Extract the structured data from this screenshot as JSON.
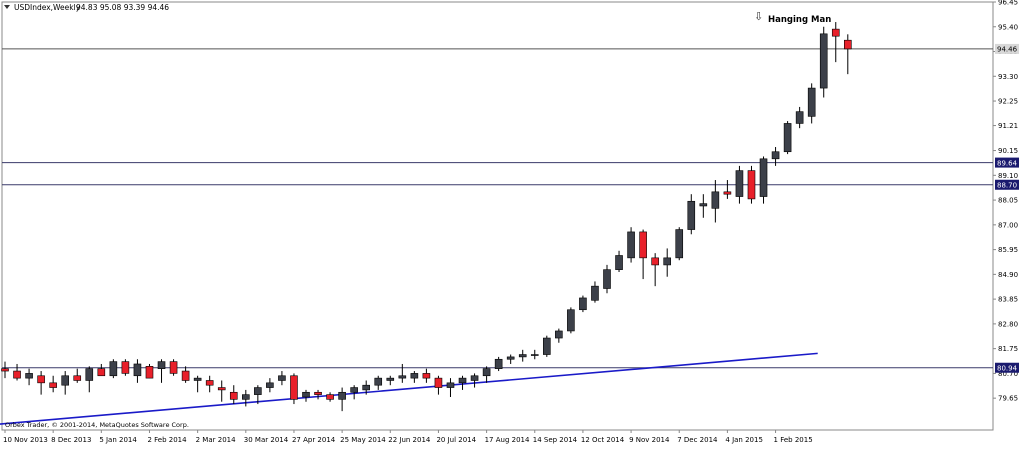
{
  "header": {
    "symbol": "USDIndex,Weekly",
    "ohlc": "94.83 95.08 93.39 94.46"
  },
  "footer": {
    "copyright": "Orbex Trader, © 2001-2014, MetaQuotes Software Corp."
  },
  "annotation": {
    "text": "Hanging Man",
    "arrow": "⇩"
  },
  "colors": {
    "bull": "#3c4049",
    "bear": "#e8202a",
    "wick": "#000000",
    "hline": "#3a3a6a",
    "trend": "#1a1ac8",
    "label_bg": "#1a1a6e",
    "axis": "#888888"
  },
  "chart_data": {
    "type": "candlestick",
    "ylim": [
      78.3,
      96.45
    ],
    "y_ticks": [
      "96.45",
      "95.40",
      "94.35",
      "93.30",
      "92.25",
      "91.21",
      "90.15",
      "89.10",
      "88.05",
      "87.00",
      "85.95",
      "84.90",
      "83.85",
      "82.80",
      "81.75",
      "80.70",
      "79.65"
    ],
    "x_ticks": [
      "10 Nov 2013",
      "8 Dec 2013",
      "5 Jan 2014",
      "2 Feb 2014",
      "2 Mar 2014",
      "30 Mar 2014",
      "27 Apr 2014",
      "25 May 2014",
      "22 Jun 2014",
      "20 Jul 2014",
      "17 Aug 2014",
      "14 Sep 2014",
      "12 Oct 2014",
      "9 Nov 2014",
      "7 Dec 2014",
      "4 Jan 2015",
      "1 Feb 2015"
    ],
    "horizontal_levels": [
      {
        "value": 94.46,
        "label": "94.46",
        "style": "gray"
      },
      {
        "value": 89.64,
        "label": "89.64",
        "style": "navy"
      },
      {
        "value": 88.7,
        "label": "88.70",
        "style": "navy"
      },
      {
        "value": 80.94,
        "label": "80.94",
        "style": "navy"
      }
    ],
    "trendline": {
      "start": [
        -0.5,
        78.55
      ],
      "end": [
        67.5,
        81.55
      ]
    },
    "candles": [
      {
        "o": 80.9,
        "h": 81.2,
        "l": 80.5,
        "c": 80.8
      },
      {
        "o": 80.8,
        "h": 81.1,
        "l": 80.4,
        "c": 80.5
      },
      {
        "o": 80.5,
        "h": 80.9,
        "l": 80.2,
        "c": 80.7
      },
      {
        "o": 80.6,
        "h": 80.8,
        "l": 79.8,
        "c": 80.3
      },
      {
        "o": 80.3,
        "h": 80.6,
        "l": 79.9,
        "c": 80.1
      },
      {
        "o": 80.2,
        "h": 80.8,
        "l": 79.8,
        "c": 80.6
      },
      {
        "o": 80.6,
        "h": 80.9,
        "l": 80.3,
        "c": 80.4
      },
      {
        "o": 80.4,
        "h": 81.0,
        "l": 79.9,
        "c": 80.9
      },
      {
        "o": 80.9,
        "h": 81.1,
        "l": 80.6,
        "c": 80.6
      },
      {
        "o": 80.6,
        "h": 81.3,
        "l": 80.5,
        "c": 81.2
      },
      {
        "o": 81.2,
        "h": 81.3,
        "l": 80.6,
        "c": 80.7
      },
      {
        "o": 80.6,
        "h": 81.3,
        "l": 80.3,
        "c": 81.1
      },
      {
        "o": 81.0,
        "h": 81.1,
        "l": 80.5,
        "c": 80.5
      },
      {
        "o": 80.9,
        "h": 81.3,
        "l": 80.3,
        "c": 81.2
      },
      {
        "o": 81.2,
        "h": 81.3,
        "l": 80.6,
        "c": 80.7
      },
      {
        "o": 80.8,
        "h": 81.0,
        "l": 80.3,
        "c": 80.4
      },
      {
        "o": 80.4,
        "h": 80.6,
        "l": 79.9,
        "c": 80.5
      },
      {
        "o": 80.4,
        "h": 80.6,
        "l": 79.9,
        "c": 80.2
      },
      {
        "o": 80.1,
        "h": 80.4,
        "l": 79.5,
        "c": 80.0
      },
      {
        "o": 79.9,
        "h": 80.2,
        "l": 79.4,
        "c": 79.6
      },
      {
        "o": 79.6,
        "h": 80.0,
        "l": 79.3,
        "c": 79.8
      },
      {
        "o": 79.8,
        "h": 80.2,
        "l": 79.4,
        "c": 80.1
      },
      {
        "o": 80.1,
        "h": 80.5,
        "l": 79.9,
        "c": 80.3
      },
      {
        "o": 80.4,
        "h": 80.8,
        "l": 80.2,
        "c": 80.6
      },
      {
        "o": 80.6,
        "h": 80.7,
        "l": 79.4,
        "c": 79.6
      },
      {
        "o": 79.7,
        "h": 80.0,
        "l": 79.5,
        "c": 79.9
      },
      {
        "o": 79.9,
        "h": 80.0,
        "l": 79.6,
        "c": 79.8
      },
      {
        "o": 79.8,
        "h": 79.9,
        "l": 79.5,
        "c": 79.6
      },
      {
        "o": 79.6,
        "h": 80.1,
        "l": 79.1,
        "c": 79.9
      },
      {
        "o": 79.9,
        "h": 80.2,
        "l": 79.6,
        "c": 80.1
      },
      {
        "o": 80.0,
        "h": 80.4,
        "l": 79.8,
        "c": 80.2
      },
      {
        "o": 80.2,
        "h": 80.6,
        "l": 80.0,
        "c": 80.5
      },
      {
        "o": 80.4,
        "h": 80.6,
        "l": 80.2,
        "c": 80.5
      },
      {
        "o": 80.5,
        "h": 81.1,
        "l": 80.3,
        "c": 80.6
      },
      {
        "o": 80.5,
        "h": 80.8,
        "l": 80.3,
        "c": 80.7
      },
      {
        "o": 80.7,
        "h": 80.9,
        "l": 80.3,
        "c": 80.5
      },
      {
        "o": 80.5,
        "h": 80.6,
        "l": 79.8,
        "c": 80.1
      },
      {
        "o": 80.1,
        "h": 80.5,
        "l": 79.7,
        "c": 80.3
      },
      {
        "o": 80.3,
        "h": 80.6,
        "l": 80.0,
        "c": 80.5
      },
      {
        "o": 80.4,
        "h": 80.7,
        "l": 80.1,
        "c": 80.6
      },
      {
        "o": 80.6,
        "h": 81.0,
        "l": 80.3,
        "c": 80.9
      },
      {
        "o": 80.9,
        "h": 81.4,
        "l": 80.8,
        "c": 81.3
      },
      {
        "o": 81.3,
        "h": 81.5,
        "l": 81.1,
        "c": 81.4
      },
      {
        "o": 81.4,
        "h": 81.7,
        "l": 81.2,
        "c": 81.5
      },
      {
        "o": 81.5,
        "h": 81.7,
        "l": 81.3,
        "c": 81.5
      },
      {
        "o": 81.5,
        "h": 82.3,
        "l": 81.4,
        "c": 82.2
      },
      {
        "o": 82.2,
        "h": 82.6,
        "l": 82.0,
        "c": 82.5
      },
      {
        "o": 82.5,
        "h": 83.5,
        "l": 82.4,
        "c": 83.4
      },
      {
        "o": 83.4,
        "h": 84.0,
        "l": 83.3,
        "c": 83.9
      },
      {
        "o": 83.8,
        "h": 84.6,
        "l": 83.7,
        "c": 84.4
      },
      {
        "o": 84.3,
        "h": 85.3,
        "l": 84.1,
        "c": 85.1
      },
      {
        "o": 85.1,
        "h": 85.9,
        "l": 85.0,
        "c": 85.7
      },
      {
        "o": 85.6,
        "h": 86.9,
        "l": 85.4,
        "c": 86.7
      },
      {
        "o": 86.7,
        "h": 86.8,
        "l": 84.7,
        "c": 85.6
      },
      {
        "o": 85.6,
        "h": 85.8,
        "l": 84.4,
        "c": 85.3
      },
      {
        "o": 85.3,
        "h": 86.0,
        "l": 84.8,
        "c": 85.6
      },
      {
        "o": 85.6,
        "h": 86.9,
        "l": 85.5,
        "c": 86.8
      },
      {
        "o": 86.8,
        "h": 88.3,
        "l": 86.6,
        "c": 88.0
      },
      {
        "o": 87.8,
        "h": 88.3,
        "l": 87.3,
        "c": 87.9
      },
      {
        "o": 87.7,
        "h": 88.9,
        "l": 87.1,
        "c": 88.4
      },
      {
        "o": 88.4,
        "h": 88.9,
        "l": 88.1,
        "c": 88.3
      },
      {
        "o": 88.2,
        "h": 89.5,
        "l": 87.9,
        "c": 89.3
      },
      {
        "o": 89.3,
        "h": 89.5,
        "l": 87.9,
        "c": 88.1
      },
      {
        "o": 88.2,
        "h": 89.9,
        "l": 87.9,
        "c": 89.8
      },
      {
        "o": 89.8,
        "h": 90.3,
        "l": 89.5,
        "c": 90.1
      },
      {
        "o": 90.1,
        "h": 91.4,
        "l": 90.0,
        "c": 91.3
      },
      {
        "o": 91.3,
        "h": 92.0,
        "l": 91.1,
        "c": 91.8
      },
      {
        "o": 91.6,
        "h": 93.0,
        "l": 91.3,
        "c": 92.8
      },
      {
        "o": 92.8,
        "h": 95.4,
        "l": 92.4,
        "c": 95.1
      },
      {
        "o": 95.3,
        "h": 95.6,
        "l": 93.9,
        "c": 95.0
      },
      {
        "o": 94.83,
        "h": 95.08,
        "l": 93.39,
        "c": 94.46
      }
    ]
  }
}
